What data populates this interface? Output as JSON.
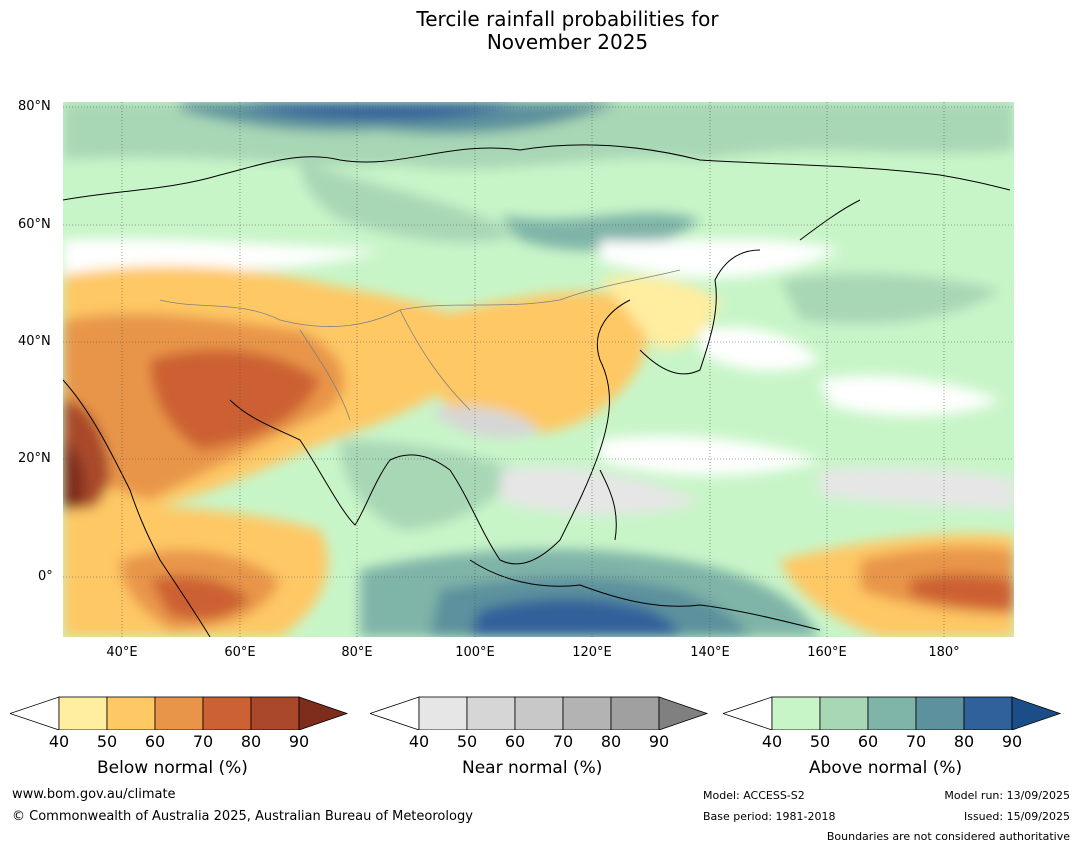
{
  "title_line1": "Tercile rainfall probabilities for",
  "title_line2": "November 2025",
  "lat_labels": [
    "80°N",
    "60°N",
    "40°N",
    "20°N",
    "0°"
  ],
  "lon_labels": [
    "40°E",
    "60°E",
    "80°E",
    "100°E",
    "120°E",
    "140°E",
    "160°E",
    "180°"
  ],
  "colorbars": [
    {
      "name": "Below normal (%)",
      "ticks": [
        "40",
        "50",
        "60",
        "70",
        "80",
        "90"
      ],
      "colors": [
        "#ffffff",
        "#ffeda0",
        "#fec865",
        "#e8954a",
        "#cc6133",
        "#a9482a",
        "#7e2c1b"
      ]
    },
    {
      "name": "Near normal (%)",
      "ticks": [
        "40",
        "50",
        "60",
        "70",
        "80",
        "90"
      ],
      "colors": [
        "#ffffff",
        "#e6e6e6",
        "#d6d6d6",
        "#c8c8c8",
        "#b3b3b3",
        "#a0a0a0",
        "#808080"
      ]
    },
    {
      "name": "Above normal (%)",
      "ticks": [
        "40",
        "50",
        "60",
        "70",
        "80",
        "90"
      ],
      "colors": [
        "#ffffff",
        "#c8f5c8",
        "#a8d7b6",
        "#7fb4a8",
        "#5c919d",
        "#31619a",
        "#1b4e88"
      ]
    }
  ],
  "footer": {
    "website": "www.bom.gov.au/climate",
    "copyright": "© Commonwealth of Australia 2025, Australian Bureau of Meteorology",
    "model": "Model: ACCESS-S2",
    "base_period": "Base period: 1981-2018",
    "model_run": "Model run: 13/09/2025",
    "issued": "Issued: 15/09/2025",
    "disclaimer": "Boundaries are not considered authoritative"
  }
}
